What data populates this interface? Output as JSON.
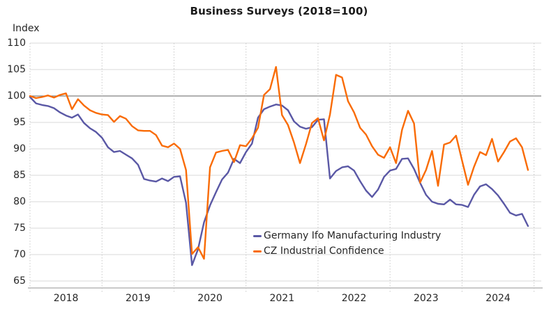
{
  "title": "Business Surveys (2018=100)",
  "y_axis_label": "Index",
  "colors": {
    "germany_line": "#5A58A5",
    "cz_line": "#F96B05",
    "gridline": "#D9D9D9",
    "baseline_100": "#808080",
    "axis_line": "#C9C9C9",
    "tick_dots": "#C8C8C8",
    "text": "#262626",
    "background": "#FFFFFF"
  },
  "legend": [
    {
      "label": "Germany Ifo Manufacturing Industry",
      "color": "#5A58A5"
    },
    {
      "label": "CZ Industrial Confidence",
      "color": "#F96B05"
    }
  ],
  "chart_data": {
    "type": "line",
    "title": "Business Surveys (2018=100)",
    "xlabel": "",
    "ylabel": "Index",
    "x_frequency": "monthly",
    "x_start": "2018-01",
    "x_end": "2024-12",
    "x_tick_labels": [
      "2018",
      "2019",
      "2020",
      "2021",
      "2022",
      "2023",
      "2024"
    ],
    "y_ticks": [
      110,
      105,
      100,
      95,
      90,
      85,
      80,
      75,
      70,
      65
    ],
    "ylim": [
      65,
      110
    ],
    "reference_line": 100,
    "grid": "horizontal-solid, yearly-vertical-dotted",
    "legend_position": "inside lower-center",
    "series": [
      {
        "name": "Germany Ifo Manufacturing Industry",
        "color": "#5A58A5",
        "values": [
          99.8,
          98.6,
          98.3,
          98.1,
          97.7,
          96.9,
          96.3,
          95.9,
          96.5,
          94.9,
          93.9,
          93.2,
          92.1,
          90.3,
          89.4,
          89.6,
          88.9,
          88.2,
          87.0,
          84.3,
          84.0,
          83.8,
          84.4,
          83.9,
          84.7,
          84.8,
          79.8,
          68.0,
          71.0,
          76.1,
          79.3,
          81.8,
          84.2,
          85.5,
          88.1,
          87.3,
          89.4,
          91.0,
          95.9,
          97.5,
          98.0,
          98.4,
          98.2,
          97.3,
          95.2,
          94.2,
          93.8,
          94.1,
          95.5,
          95.6,
          84.4,
          85.8,
          86.5,
          86.7,
          85.9,
          83.9,
          82.1,
          80.9,
          82.3,
          84.7,
          85.9,
          86.2,
          88.1,
          88.2,
          86.2,
          83.6,
          81.3,
          80.0,
          79.6,
          79.5,
          80.4,
          79.5,
          79.4,
          79.0,
          81.3,
          82.9,
          83.3,
          82.4,
          81.2,
          79.6,
          77.9,
          77.4,
          77.7,
          75.4
        ]
      },
      {
        "name": "CZ Industrial Confidence",
        "color": "#F96B05",
        "values": [
          100.0,
          99.6,
          99.8,
          100.1,
          99.7,
          100.2,
          100.5,
          97.5,
          99.4,
          98.2,
          97.3,
          96.8,
          96.5,
          96.4,
          95.1,
          96.2,
          95.7,
          94.3,
          93.5,
          93.4,
          93.4,
          92.6,
          90.6,
          90.3,
          91.0,
          90.0,
          86.0,
          70.1,
          71.4,
          69.2,
          86.5,
          89.3,
          89.6,
          89.8,
          87.5,
          90.7,
          90.5,
          92.0,
          94.0,
          100.2,
          101.3,
          105.5,
          96.4,
          94.5,
          91.2,
          87.3,
          90.9,
          94.9,
          95.8,
          91.6,
          96.5,
          104.0,
          103.5,
          99.0,
          96.9,
          94.0,
          92.7,
          90.5,
          88.9,
          88.3,
          90.3,
          87.3,
          93.6,
          97.2,
          94.8,
          83.6,
          86.0,
          89.6,
          83.0,
          90.8,
          91.2,
          92.5,
          87.8,
          83.2,
          86.6,
          89.4,
          88.8,
          91.9,
          87.6,
          89.4,
          91.4,
          92.0,
          90.3,
          86.0
        ]
      }
    ]
  }
}
